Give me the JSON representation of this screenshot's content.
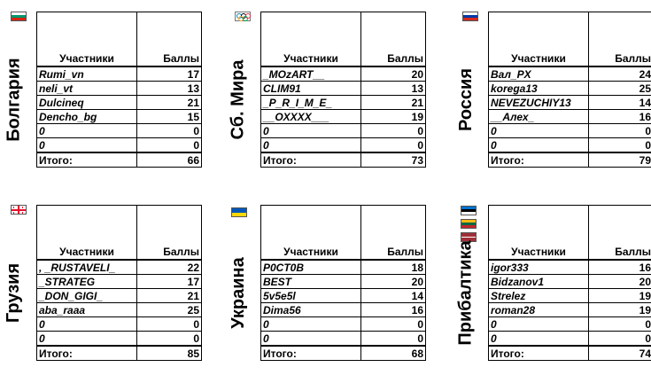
{
  "col_headers": {
    "participants": "Участники",
    "points": "Баллы"
  },
  "total_label": "Итого:",
  "panels": [
    {
      "name": "Болгария",
      "flag": "bulgaria-flag",
      "colors": [
        "#ffffff",
        "#00966e",
        "#d62612"
      ],
      "rows": [
        {
          "player": "Rumi_vn",
          "score": "17"
        },
        {
          "player": "neli_vt",
          "score": "13"
        },
        {
          "player": "Dulcineq",
          "score": "21"
        },
        {
          "player": "Dencho_bg",
          "score": "15"
        },
        {
          "player": "0",
          "score": "0"
        },
        {
          "player": "0",
          "score": "0"
        }
      ],
      "total": "66"
    },
    {
      "name": "Сб. Мира",
      "flag": "olympic-flag",
      "colors": [
        "#ffffff"
      ],
      "rows": [
        {
          "player": "_MOzART__",
          "score": "20"
        },
        {
          "player": "CLIM91",
          "score": "13"
        },
        {
          "player": "_P_R_I_M_E_",
          "score": "21"
        },
        {
          "player": "__OXXXX___",
          "score": "19"
        },
        {
          "player": "0",
          "score": "0"
        },
        {
          "player": "0",
          "score": "0"
        }
      ],
      "total": "73"
    },
    {
      "name": "Россия",
      "flag": "russia-flag",
      "colors": [
        "#ffffff",
        "#0039a6",
        "#d52b1e"
      ],
      "rows": [
        {
          "player": "Вал_PX",
          "score": "24"
        },
        {
          "player": "korega13",
          "score": "25"
        },
        {
          "player": "NEVEZUCHIY13",
          "score": "14"
        },
        {
          "player": "__Алех_",
          "score": "16"
        },
        {
          "player": "0",
          "score": "0"
        },
        {
          "player": "0",
          "score": "0"
        }
      ],
      "total": "79"
    },
    {
      "name": "Грузия",
      "flag": "georgia-flag",
      "colors": [
        "#ffffff",
        "#e8112d"
      ],
      "rows": [
        {
          "player": ", _RUSTAVELI_",
          "score": "22"
        },
        {
          "player": "_STRATEG",
          "score": "17"
        },
        {
          "player": "_DON_GIGI_",
          "score": "21"
        },
        {
          "player": "aba_raaa",
          "score": "25"
        },
        {
          "player": "0",
          "score": "0"
        },
        {
          "player": "0",
          "score": "0"
        }
      ],
      "total": "85"
    },
    {
      "name": "Украина",
      "flag": "ukraine-flag",
      "colors": [
        "#0057b7",
        "#ffd700"
      ],
      "rows": [
        {
          "player": "P0CT0B",
          "score": "18"
        },
        {
          "player": "BEST",
          "score": "20"
        },
        {
          "player": "5v5e5l",
          "score": "14"
        },
        {
          "player": "Dima56",
          "score": "16"
        },
        {
          "player": "0",
          "score": "0"
        },
        {
          "player": "0",
          "score": "0"
        }
      ],
      "total": "68"
    },
    {
      "name": "Прибалтика",
      "flag": "baltic-flags",
      "colors": [
        "#0072ce",
        "#000000",
        "#ffffff",
        "#fdb913",
        "#006a44",
        "#c1272d",
        "#9e3039"
      ],
      "rows": [
        {
          "player": "igor333",
          "score": "16"
        },
        {
          "player": "Bidzanov1",
          "score": "20"
        },
        {
          "player": "Strelez",
          "score": "19"
        },
        {
          "player": "roman28",
          "score": "19"
        },
        {
          "player": "0",
          "score": "0"
        },
        {
          "player": "0",
          "score": "0"
        }
      ],
      "total": "74"
    }
  ]
}
